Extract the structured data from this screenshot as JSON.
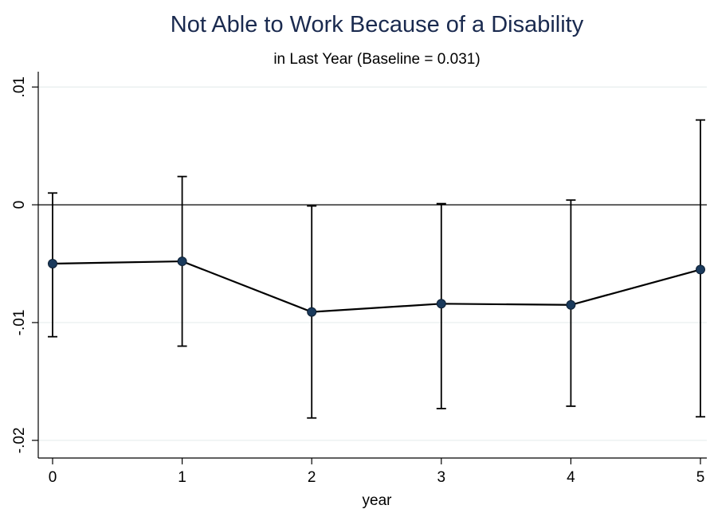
{
  "chart_data": {
    "type": "line",
    "title": "Not Able to Work Because of a Disability",
    "subtitle": "in Last Year (Baseline = 0.031)",
    "xlabel": "year",
    "ylabel": "",
    "x": [
      0,
      1,
      2,
      3,
      4,
      5
    ],
    "x_tick_labels": [
      "0",
      "1",
      "2",
      "3",
      "4",
      "5"
    ],
    "y_ticks": [
      0.01,
      0,
      -0.01,
      -0.02
    ],
    "y_tick_labels": [
      ".01",
      "0",
      "-.01",
      "-.02"
    ],
    "ylim": [
      -0.0215,
      0.0113
    ],
    "xlim": [
      0,
      5
    ],
    "series": [
      {
        "values": [
          -0.005,
          -0.0048,
          -0.0091,
          -0.0084,
          -0.0085,
          -0.0055
        ],
        "ci_low": [
          -0.0112,
          -0.012,
          -0.0181,
          -0.0173,
          -0.0171,
          -0.018
        ],
        "ci_high": [
          0.001,
          0.0024,
          -0.0001,
          0.0001,
          0.0004,
          0.0072
        ]
      }
    ],
    "reference_line_y": 0,
    "grid": true,
    "colors": {
      "title": "#1a2a4f",
      "marker": "#1a3a5c",
      "line": "#000000",
      "grid": "#e6eeee"
    }
  }
}
